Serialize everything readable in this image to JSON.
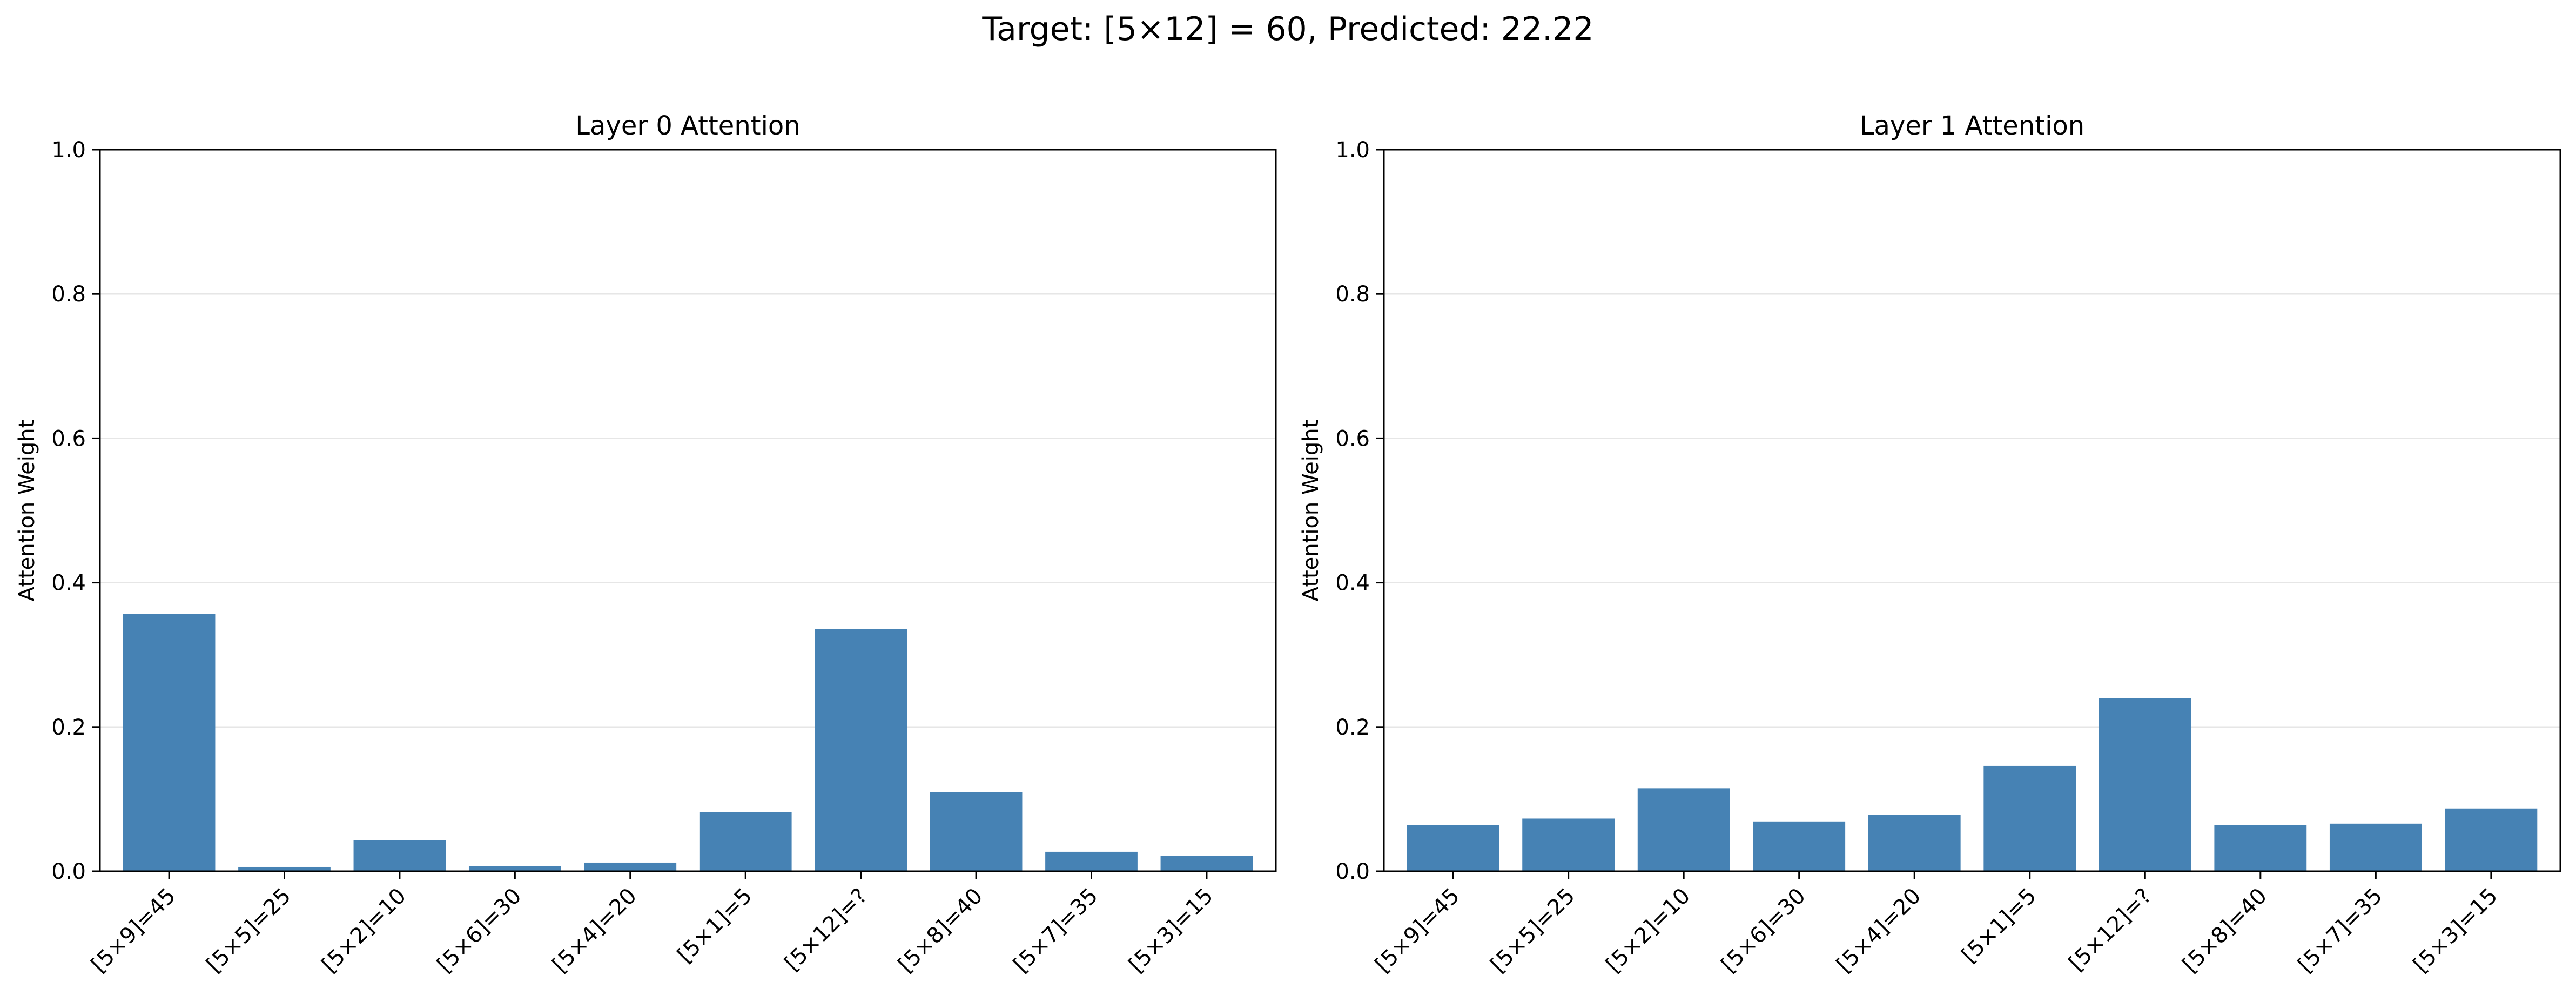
{
  "figure": {
    "suptitle": "Target: [5×12] = 60, Predicted: 22.22"
  },
  "chart_data": [
    {
      "type": "bar",
      "title": "Layer 0 Attention",
      "xlabel": "",
      "ylabel": "Attention Weight",
      "ylim": [
        0,
        1.0
      ],
      "yticks": [
        "0.0",
        "0.2",
        "0.4",
        "0.6",
        "0.8",
        "1.0"
      ],
      "grid": "horizontal",
      "categories": [
        "[5×9]=45",
        "[5×5]=25",
        "[5×2]=10",
        "[5×6]=30",
        "[5×4]=20",
        "[5×1]=5",
        "[5×12]=?",
        "[5×8]=40",
        "[5×7]=35",
        "[5×3]=15"
      ],
      "values": [
        0.357,
        0.006,
        0.043,
        0.007,
        0.012,
        0.082,
        0.336,
        0.11,
        0.027,
        0.021
      ],
      "color": "#4682b4"
    },
    {
      "type": "bar",
      "title": "Layer 1 Attention",
      "xlabel": "",
      "ylabel": "Attention Weight",
      "ylim": [
        0,
        1.0
      ],
      "yticks": [
        "0.0",
        "0.2",
        "0.4",
        "0.6",
        "0.8",
        "1.0"
      ],
      "grid": "horizontal",
      "categories": [
        "[5×9]=45",
        "[5×5]=25",
        "[5×2]=10",
        "[5×6]=30",
        "[5×4]=20",
        "[5×1]=5",
        "[5×12]=?",
        "[5×8]=40",
        "[5×7]=35",
        "[5×3]=15"
      ],
      "values": [
        0.064,
        0.073,
        0.115,
        0.069,
        0.078,
        0.146,
        0.24,
        0.064,
        0.066,
        0.087
      ],
      "color": "#4682b4"
    }
  ]
}
